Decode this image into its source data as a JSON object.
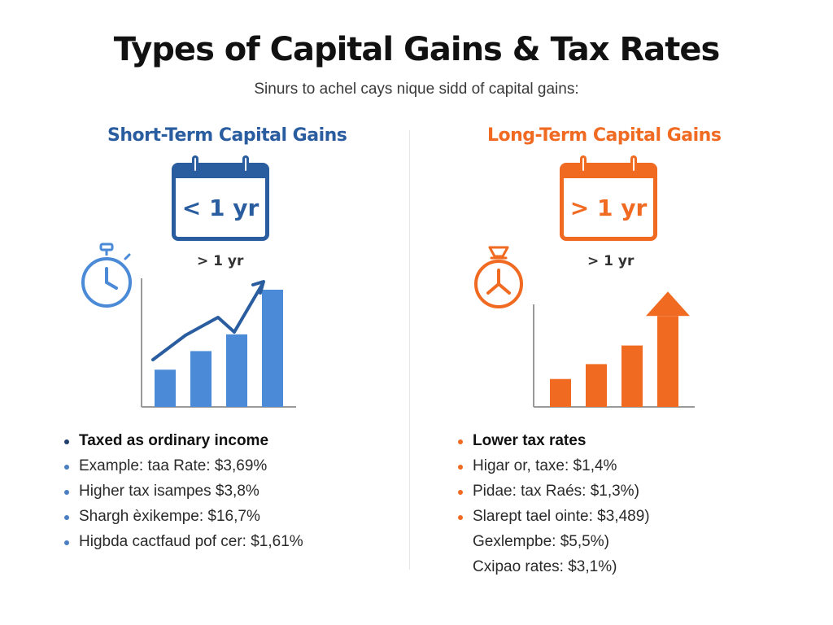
{
  "header": {
    "title": "Types of Capital Gains & Tax Rates",
    "subtitle": "Sinurs to achel cays nique sidd of capital gains:"
  },
  "colors": {
    "short_accent": "#2a5d9f",
    "short_bar": "#4a8ad6",
    "long_accent": "#f06a22"
  },
  "short_term": {
    "title": "Short-Term Capital Gains",
    "calendar_label": "< 1 yr",
    "period_label": "> 1 yr",
    "icon": "stopwatch-icon",
    "bullets": [
      {
        "text": "Taxed as ordinary income"
      },
      {
        "text": "Example: taa Rate: $3,69%"
      },
      {
        "text": "Higher tax isampes $3,8%"
      },
      {
        "text": "Shargh èxikempe: $16,7%"
      },
      {
        "text": "Higbda cactfaud pof cer: $1,61%"
      }
    ]
  },
  "long_term": {
    "title": "Long-Term Capital Gains",
    "calendar_label": "> 1 yr",
    "period_label": "> 1 yr",
    "icon": "money-bag-timer-icon",
    "bullets": [
      {
        "text": "Lower tax rates"
      },
      {
        "text": "Higar or, taxe: $1,4%"
      },
      {
        "text": "Pidae: tax Raés: $1,3%)"
      },
      {
        "text": "Slarept tael ointe: $3,489)"
      },
      {
        "text": "Gexlempbe: $5,5%)"
      },
      {
        "text": "Cxipao rates: $3,1%)"
      }
    ]
  },
  "short_chart": {
    "type": "bar",
    "values": [
      2,
      3,
      3.9,
      6.3
    ],
    "ylim": [
      0,
      7
    ],
    "trend": true
  },
  "long_chart": {
    "type": "bar",
    "values": [
      1.5,
      2.3,
      3.3
    ],
    "ylim": [
      0,
      7
    ],
    "arrow_level": 6.2
  }
}
